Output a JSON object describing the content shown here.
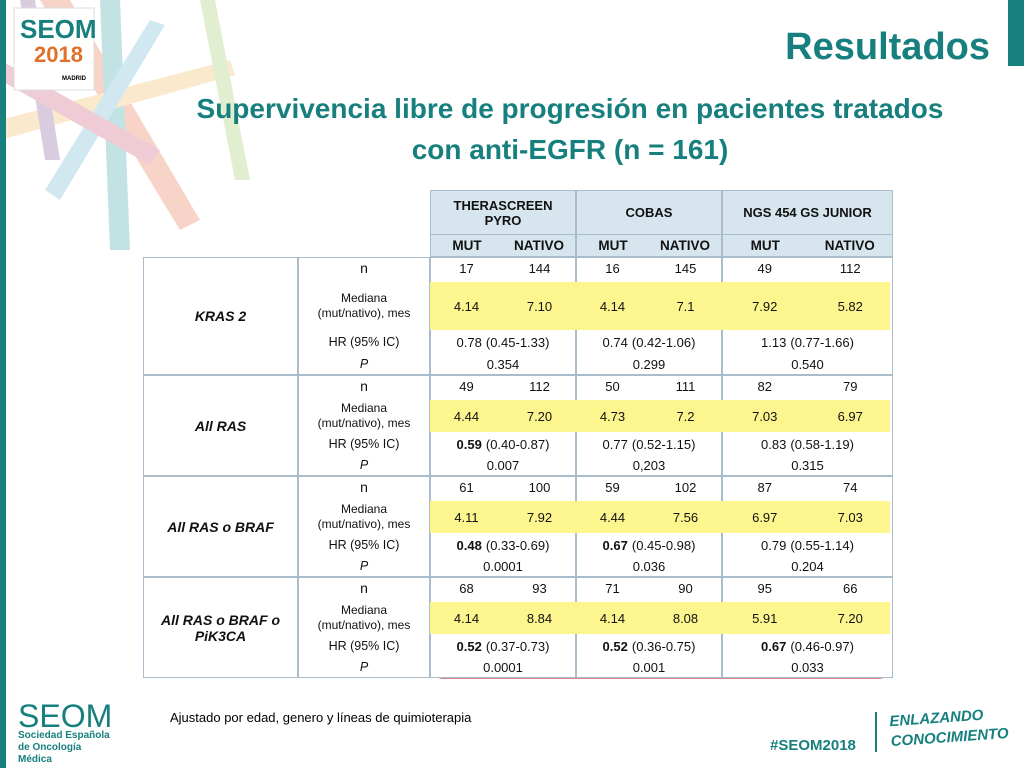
{
  "logo": {
    "word": "SEOM",
    "year": "2018",
    "city": "MADRID"
  },
  "title": "Resultados",
  "subtitle": "Supervivencia libre de progresión en pacientes tratados con anti-EGFR (n = 161)",
  "table": {
    "groups": [
      "THERASCREEN PYRO",
      "COBAS",
      "NGS 454 GS JUNIOR"
    ],
    "subheaders": [
      "MUT",
      "NATIVO",
      "MUT",
      "NATIVO",
      "MUT",
      "NATIVO"
    ],
    "row_labels": [
      "n",
      "Mediana (mut/nativo), mes",
      "HR (95% IC)",
      "P"
    ],
    "sections": [
      {
        "name": "KRAS 2",
        "n": [
          "17",
          "144",
          "16",
          "145",
          "49",
          "112"
        ],
        "median": [
          "4.14",
          "7.10",
          "4.14",
          "7.1",
          "7.92",
          "5.82"
        ],
        "hr": [
          {
            "est": "0.78",
            "ci": "(0.45-1.33)",
            "bold": false
          },
          {
            "est": "0.74",
            "ci": "(0.42-1.06)",
            "bold": false
          },
          {
            "est": "1.13",
            "ci": "(0.77-1.66)",
            "bold": false
          }
        ],
        "p": [
          "0.354",
          "0.299",
          "0.540"
        ]
      },
      {
        "name": "All RAS",
        "n": [
          "49",
          "112",
          "50",
          "111",
          "82",
          "79"
        ],
        "median": [
          "4.44",
          "7.20",
          "4.73",
          "7.2",
          "7.03",
          "6.97"
        ],
        "hr": [
          {
            "est": "0.59",
            "ci": "(0.40-0.87)",
            "bold": true
          },
          {
            "est": "0.77",
            "ci": "(0.52-1.15)",
            "bold": false
          },
          {
            "est": "0.83",
            "ci": "(0.58-1.19)",
            "bold": false
          }
        ],
        "p": [
          "0.007",
          "0,203",
          "0.315"
        ]
      },
      {
        "name": "All RAS o BRAF",
        "n": [
          "61",
          "100",
          "59",
          "102",
          "87",
          "74"
        ],
        "median": [
          "4.11",
          "7.92",
          "4.44",
          "7.56",
          "6.97",
          "7.03"
        ],
        "hr": [
          {
            "est": "0.48",
            "ci": "(0.33-0.69)",
            "bold": true
          },
          {
            "est": "0.67",
            "ci": "(0.45-0.98)",
            "bold": true
          },
          {
            "est": "0.79",
            "ci": "(0.55-1.14)",
            "bold": false
          }
        ],
        "p": [
          "0.0001",
          "0.036",
          "0.204"
        ]
      },
      {
        "name": "All RAS o BRAF o PiK3CA",
        "n": [
          "68",
          "93",
          "71",
          "90",
          "95",
          "66"
        ],
        "median": [
          "4.14",
          "8.84",
          "4.14",
          "8.08",
          "5.91",
          "7.20"
        ],
        "hr": [
          {
            "est": "0.52",
            "ci": "(0.37-0.73)",
            "bold": true
          },
          {
            "est": "0.52",
            "ci": "(0.36-0.75)",
            "bold": true
          },
          {
            "est": "0.67",
            "ci": "(0.46-0.97)",
            "bold": true
          }
        ],
        "p": [
          "0.0001",
          "0.001",
          "0.033"
        ]
      }
    ]
  },
  "footnote": "Ajustado por edad, genero y líneas de quimioterapia",
  "footer": {
    "org": "SEOM",
    "org_full": "Sociedad Española de Oncología Médica",
    "hashtag": "#SEOM2018",
    "slogan": "ENLAZANDO CONOCIMIENTO"
  }
}
